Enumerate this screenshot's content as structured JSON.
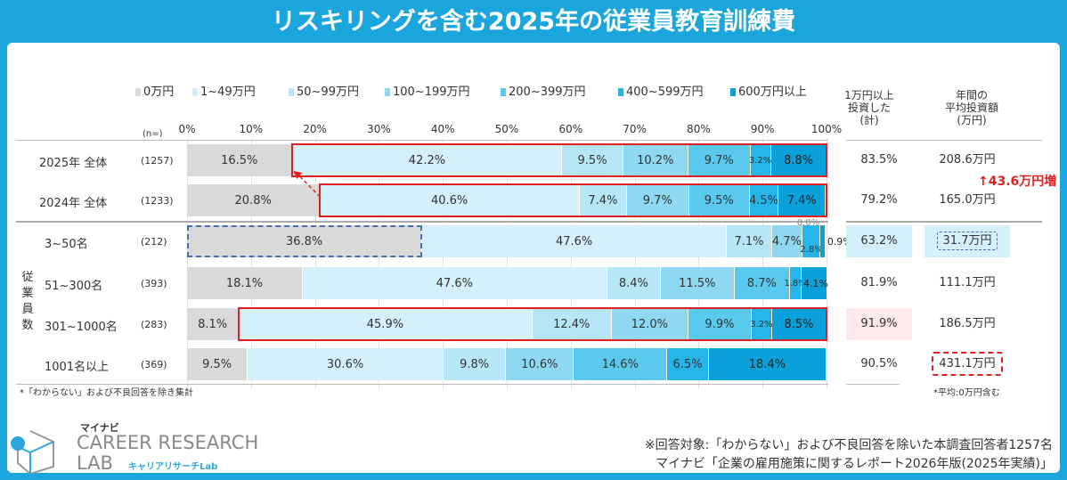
{
  "title": "リスキリングを含む2025年の従業員教育訓練費",
  "chart_data": {
    "type": "bar",
    "orientation": "horizontal-stacked-100",
    "legend_position": "top",
    "legend": [
      "0万円",
      "1~49万円",
      "50~99万円",
      "100~199万円",
      "200~399万円",
      "400~599万円",
      "600万円以上"
    ],
    "colors": [
      "#d9d9d9",
      "#d4f0fb",
      "#b6e6f7",
      "#8ed8f2",
      "#5ac9ee",
      "#26b5e8",
      "#0aa0da"
    ],
    "xlim": [
      0,
      100
    ],
    "ticks": [
      "0%",
      "10%",
      "20%",
      "30%",
      "40%",
      "50%",
      "60%",
      "70%",
      "80%",
      "90%",
      "100%"
    ],
    "n_header": "(n=)",
    "categories": [
      "2025年 全体",
      "2024年 全体",
      "3~50名",
      "51~300名",
      "301~1000名",
      "1001名以上"
    ],
    "n": [
      "(1257)",
      "(1233)",
      "(212)",
      "(393)",
      "(283)",
      "(369)"
    ],
    "rows": [
      [
        16.5,
        42.2,
        9.5,
        10.2,
        9.7,
        3.2,
        8.8
      ],
      [
        20.8,
        40.6,
        7.4,
        9.7,
        9.5,
        4.5,
        7.4
      ],
      [
        36.8,
        47.6,
        7.1,
        4.7,
        0.0,
        2.8,
        0.9
      ],
      [
        18.1,
        47.6,
        8.4,
        11.5,
        8.7,
        1.8,
        4.1
      ],
      [
        8.1,
        45.9,
        12.4,
        12.0,
        9.9,
        3.2,
        8.5
      ],
      [
        9.5,
        30.6,
        9.8,
        10.6,
        14.6,
        6.5,
        18.4
      ]
    ],
    "group_label": "従業員数"
  },
  "columns": {
    "invested_header": "1万円以上\n投資した\n(計)",
    "avg_header": "年間の\n平均投資額\n(万円)",
    "invested": [
      "83.5%",
      "79.2%",
      "63.2%",
      "81.9%",
      "91.9%",
      "90.5%"
    ],
    "avg": [
      "208.6万円",
      "165.0万円",
      "31.7万円",
      "111.1万円",
      "186.5万円",
      "431.1万円"
    ]
  },
  "annotation": "43.6万円増",
  "notes": {
    "left": "*「わからない」および不良回答を除き集計",
    "right": "*平均:0万円含む",
    "source1": "※回答対象:「わからない」および不良回答を除いた本調査回答者1257名",
    "source2": "マイナビ「企業の雇用施策に関するレポート2026年版(2025年実績)」"
  },
  "logo": {
    "brand": "マイナビ",
    "line1": "CAREER RESEARCH",
    "line2": "LAB",
    "sub": "キャリアリサーチLab"
  }
}
